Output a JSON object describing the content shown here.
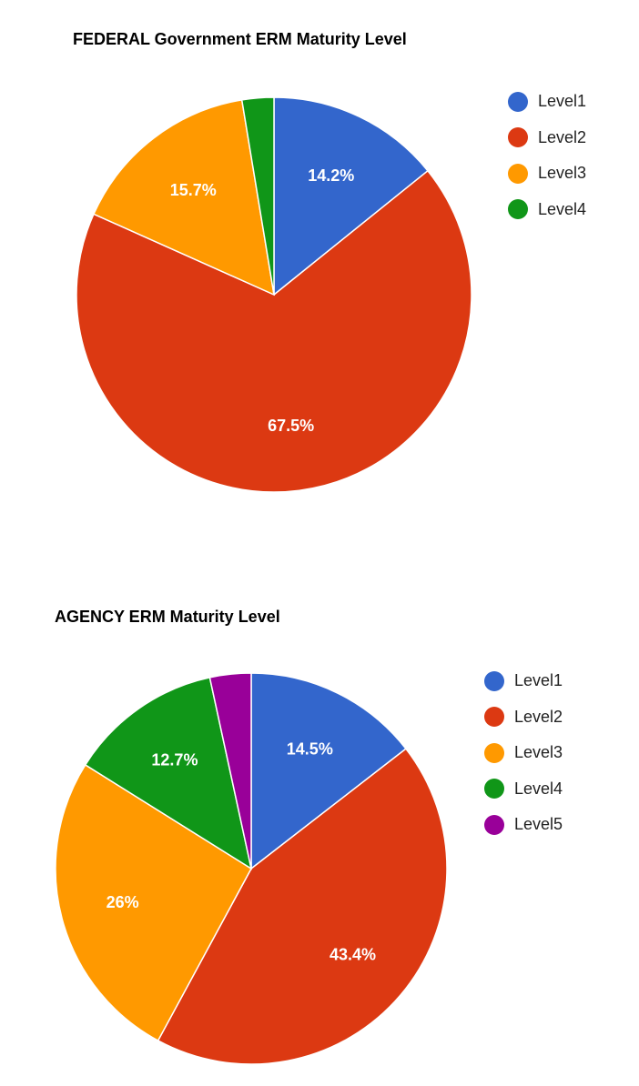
{
  "chart_data": [
    {
      "type": "pie",
      "title": "FEDERAL Government ERM Maturity Level",
      "categories": [
        "Level1",
        "Level2",
        "Level3",
        "Level4"
      ],
      "values": [
        14.2,
        67.5,
        15.7,
        2.6
      ],
      "slice_labels": [
        "14.2%",
        "67.5%",
        "15.7%",
        ""
      ],
      "colors": [
        "#3366cc",
        "#dc3912",
        "#ff9900",
        "#109618"
      ],
      "legend_position": "right"
    },
    {
      "type": "pie",
      "title": "AGENCY ERM Maturity Level",
      "categories": [
        "Level1",
        "Level2",
        "Level3",
        "Level4",
        "Level5"
      ],
      "values": [
        14.5,
        43.4,
        26,
        12.7,
        3.4
      ],
      "slice_labels": [
        "14.5%",
        "43.4%",
        "26%",
        "12.7%",
        ""
      ],
      "colors": [
        "#3366cc",
        "#dc3912",
        "#ff9900",
        "#109618",
        "#990099"
      ],
      "legend_position": "right"
    }
  ]
}
